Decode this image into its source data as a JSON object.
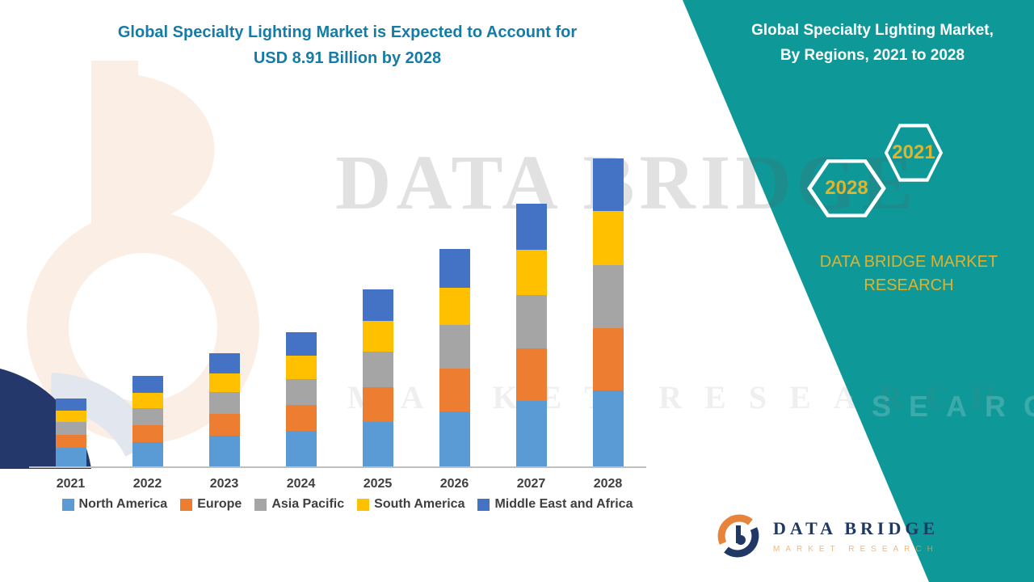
{
  "title": {
    "line1": "Global Specialty Lighting Market is Expected to Account for",
    "line2": "USD 8.91 Billion by 2028"
  },
  "side_panel": {
    "heading_line1": "Global Specialty Lighting Market,",
    "heading_line2": "By Regions, 2021 to 2028",
    "hexagon_left": "2028",
    "hexagon_right": "2021",
    "brand_line1": "DATA BRIDGE MARKET",
    "brand_line2": "RESEARCH",
    "faded_watermark": "RESEARCH",
    "colors": {
      "panel": "#0f9898",
      "gold": "#dfb22d"
    }
  },
  "watermarks": {
    "big_text": "DATA BRIDGE",
    "sub_text": "MARKET RESEARCH"
  },
  "footer_logo": {
    "name": "DATA BRIDGE",
    "sub": "MARKET RESEARCH"
  },
  "chart_data": {
    "type": "bar",
    "stacked": true,
    "title": "Global Specialty Lighting Market is Expected to Account for USD 8.91 Billion by 2028",
    "unit": "USD Billion",
    "categories": [
      "2021",
      "2022",
      "2023",
      "2024",
      "2025",
      "2026",
      "2027",
      "2028"
    ],
    "series": [
      {
        "name": "North America",
        "color": "#5B9BD5",
        "values": [
          0.55,
          0.7,
          0.88,
          1.02,
          1.3,
          1.6,
          1.9,
          2.2
        ]
      },
      {
        "name": "Europe",
        "color": "#ED7D31",
        "values": [
          0.38,
          0.5,
          0.63,
          0.76,
          1.0,
          1.25,
          1.52,
          1.8
        ]
      },
      {
        "name": "Asia Pacific",
        "color": "#A5A5A5",
        "values": [
          0.38,
          0.5,
          0.64,
          0.76,
          1.02,
          1.27,
          1.55,
          1.82
        ]
      },
      {
        "name": "South America",
        "color": "#FFC000",
        "values": [
          0.33,
          0.44,
          0.55,
          0.67,
          0.88,
          1.09,
          1.32,
          1.56
        ]
      },
      {
        "name": "Middle East and Africa",
        "color": "#4472C4",
        "values": [
          0.36,
          0.49,
          0.58,
          0.68,
          0.91,
          1.12,
          1.33,
          1.53
        ]
      }
    ],
    "totals_estimated": [
      2.0,
      2.63,
      3.28,
      3.89,
      5.11,
      6.33,
      7.62,
      8.91
    ],
    "stated_value": {
      "year": "2028",
      "total": 8.91
    },
    "ylim": [
      0,
      8.91
    ],
    "grid": false,
    "legend_position": "bottom"
  }
}
